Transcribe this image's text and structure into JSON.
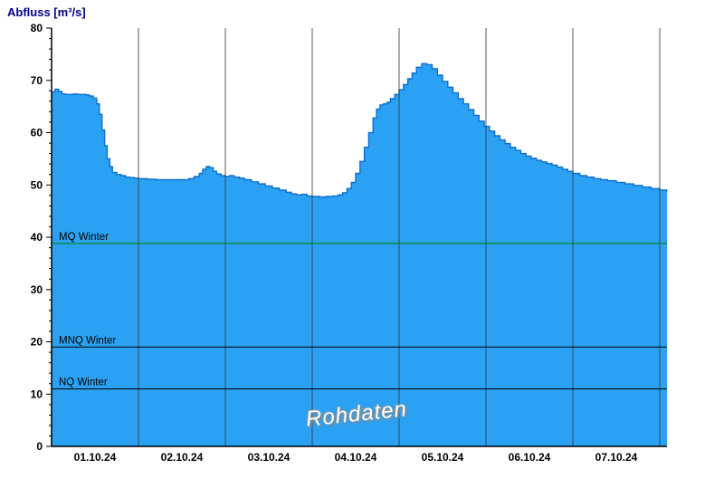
{
  "title": "Abfluss [m³/s]",
  "watermark": "Rohdaten",
  "colors": {
    "title": "#00008B",
    "area_fill": "#2AA1F2",
    "area_stroke": "#0A6ED0",
    "grid": "#3a3a3a",
    "axis": "#000000",
    "mq_line": "#008000",
    "ref_line": "#000000"
  },
  "chart_data": {
    "type": "area",
    "title": "Abfluss [m³/s]",
    "ylabel": "Abfluss [m³/s]",
    "xlabel": "",
    "ylim": [
      0,
      80
    ],
    "y_ticks": [
      0,
      10,
      20,
      30,
      40,
      50,
      60,
      70,
      80
    ],
    "x_tick_labels": [
      "01.10.24",
      "02.10.24",
      "03.10.24",
      "04.10.24",
      "05.10.24",
      "06.10.24",
      "07.10.24"
    ],
    "x_range_days": [
      0,
      7.083
    ],
    "grid": "vertical-daily",
    "legend": "none",
    "annotation": "Rohdaten",
    "reference_lines": [
      {
        "label": "MQ Winter",
        "value": 38.8,
        "color": "#008000"
      },
      {
        "label": "MNQ Winter",
        "value": 19.0,
        "color": "#000000"
      },
      {
        "label": "NQ Winter",
        "value": 11.0,
        "color": "#000000"
      }
    ],
    "series": [
      {
        "name": "Rohdaten",
        "unit": "m³/s",
        "x": [
          0.0,
          0.04,
          0.08,
          0.12,
          0.16,
          0.2,
          0.25,
          0.3,
          0.35,
          0.4,
          0.44,
          0.48,
          0.52,
          0.55,
          0.58,
          0.61,
          0.64,
          0.67,
          0.7,
          0.75,
          0.8,
          0.85,
          0.9,
          0.95,
          1.0,
          1.1,
          1.2,
          1.3,
          1.4,
          1.5,
          1.58,
          1.64,
          1.7,
          1.74,
          1.78,
          1.82,
          1.86,
          1.9,
          1.95,
          2.0,
          2.05,
          2.1,
          2.16,
          2.22,
          2.3,
          2.38,
          2.46,
          2.54,
          2.62,
          2.7,
          2.76,
          2.82,
          2.88,
          2.94,
          3.0,
          3.08,
          3.16,
          3.24,
          3.3,
          3.35,
          3.4,
          3.45,
          3.5,
          3.55,
          3.6,
          3.65,
          3.7,
          3.74,
          3.78,
          3.82,
          3.86,
          3.9,
          3.95,
          4.0,
          4.05,
          4.1,
          4.15,
          4.2,
          4.26,
          4.32,
          4.38,
          4.44,
          4.5,
          4.56,
          4.62,
          4.68,
          4.74,
          4.8,
          4.86,
          4.92,
          4.98,
          5.04,
          5.1,
          5.16,
          5.22,
          5.28,
          5.34,
          5.4,
          5.46,
          5.52,
          5.58,
          5.64,
          5.7,
          5.76,
          5.82,
          5.88,
          5.94,
          6.0,
          6.08,
          6.16,
          6.24,
          6.32,
          6.4,
          6.5,
          6.6,
          6.7,
          6.8,
          6.9,
          7.0,
          7.08
        ],
        "y": [
          67.8,
          68.3,
          67.9,
          67.4,
          67.3,
          67.3,
          67.4,
          67.3,
          67.3,
          67.2,
          67.0,
          66.6,
          65.5,
          63.5,
          60.5,
          57.5,
          55.0,
          53.5,
          52.4,
          52.0,
          51.8,
          51.5,
          51.4,
          51.3,
          51.2,
          51.1,
          51.0,
          51.0,
          51.0,
          51.0,
          51.2,
          51.6,
          52.2,
          53.0,
          53.5,
          53.3,
          52.6,
          52.1,
          51.8,
          51.6,
          51.8,
          51.5,
          51.3,
          51.0,
          50.6,
          50.2,
          49.8,
          49.4,
          49.0,
          48.6,
          48.3,
          48.1,
          48.2,
          47.9,
          47.8,
          47.7,
          47.8,
          47.9,
          48.1,
          48.5,
          49.3,
          50.5,
          52.2,
          54.5,
          57.2,
          60.0,
          62.8,
          64.5,
          65.3,
          65.5,
          65.8,
          66.5,
          67.3,
          68.2,
          69.2,
          70.3,
          71.4,
          72.5,
          73.2,
          73.0,
          72.2,
          71.0,
          69.8,
          68.7,
          67.6,
          66.5,
          65.5,
          64.4,
          63.3,
          62.2,
          61.2,
          60.3,
          59.4,
          58.6,
          57.9,
          57.2,
          56.6,
          56.0,
          55.5,
          55.1,
          54.7,
          54.4,
          54.1,
          53.8,
          53.4,
          53.0,
          52.6,
          52.2,
          51.8,
          51.5,
          51.2,
          51.0,
          50.8,
          50.5,
          50.2,
          49.9,
          49.6,
          49.3,
          49.0,
          48.8
        ]
      }
    ]
  }
}
